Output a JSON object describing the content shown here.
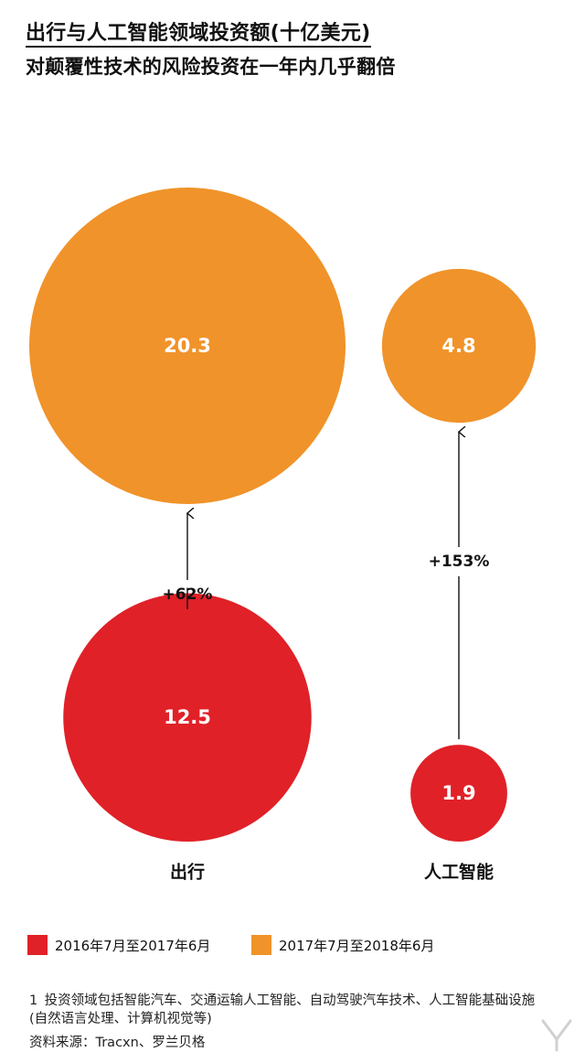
{
  "title": "出行与人工智能领域投资额(十亿美元)",
  "subtitle": "对颠覆性技术的风险投资在一年内几乎翻倍",
  "chart_data": {
    "type": "bubble",
    "categories": [
      "出行",
      "人工智能"
    ],
    "series": [
      {
        "name": "2016年7月至2017年6月",
        "color": "#e02128",
        "values": [
          12.5,
          1.9
        ],
        "labels": [
          "12.5",
          "1.9"
        ]
      },
      {
        "name": "2017年7月至2018年6月",
        "color": "#f0932a",
        "values": [
          20.3,
          4.8
        ],
        "labels": [
          "20.3",
          "4.8"
        ]
      }
    ],
    "growth_labels": [
      "+62%",
      "+153%"
    ],
    "legend_position": "bottom-left"
  },
  "footnote": {
    "marker": "1",
    "text": "投资领域包括智能汽车、交通运输人工智能、自动驾驶汽车技术、人工智能基础设施(自然语言处理、计算机视觉等)"
  },
  "source": "资料来源：Tracxn、罗兰贝格",
  "colors": {
    "red": "#e02128",
    "orange": "#f0932a",
    "text": "#111111"
  },
  "watermark_icon": "yiou-logo-icon"
}
